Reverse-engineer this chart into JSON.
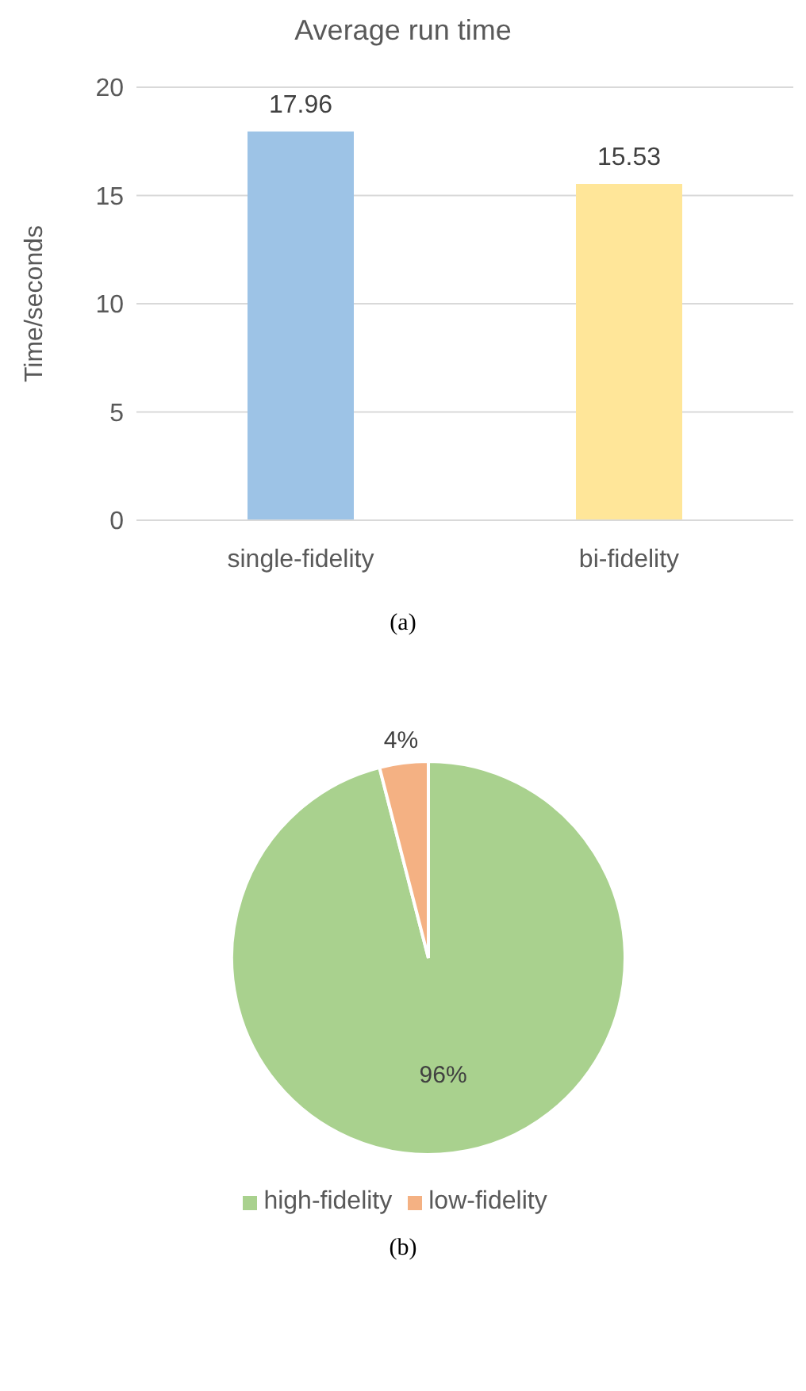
{
  "chart_data": [
    {
      "type": "bar",
      "title": "Average run time",
      "ylabel": "Time/seconds",
      "categories": [
        "single-fidelity",
        "bi-fidelity"
      ],
      "values": [
        17.96,
        15.53
      ],
      "colors": [
        "#9dc3e6",
        "#ffe699"
      ],
      "ylim": [
        0,
        20
      ],
      "yticks": [
        0,
        5,
        10,
        15,
        20
      ],
      "grid": "y",
      "data_labels": true,
      "annotations": [
        "(a)"
      ]
    },
    {
      "type": "pie",
      "categories": [
        "high-fidelity",
        "low-fidelity"
      ],
      "values": [
        96,
        4
      ],
      "colors": [
        "#a9d18e",
        "#f4b183"
      ],
      "value_labels": [
        "96%",
        "4%"
      ],
      "legend": "bottom",
      "annotations": [
        "(b)"
      ]
    }
  ]
}
